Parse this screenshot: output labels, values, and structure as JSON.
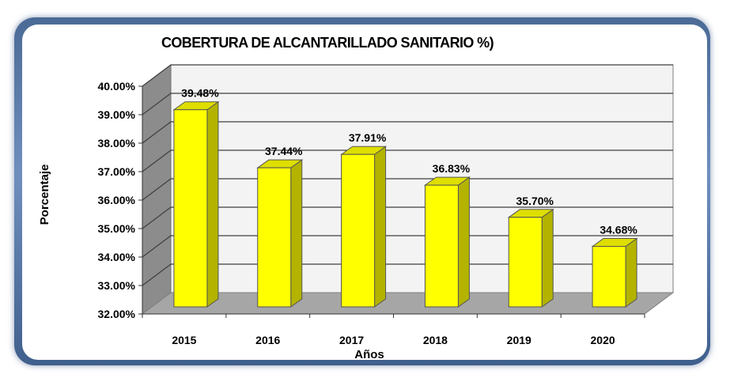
{
  "chart_data": {
    "type": "bar",
    "title": "COBERTURA DE ALCANTARILLADO SANITARIO %)",
    "xlabel": "Años",
    "ylabel": "Porcentaje",
    "categories": [
      "2015",
      "2016",
      "2017",
      "2018",
      "2019",
      "2020"
    ],
    "values": [
      39.48,
      37.44,
      37.91,
      36.83,
      35.7,
      34.68
    ],
    "data_labels": [
      "39.48%",
      "37.44%",
      "37.91%",
      "36.83%",
      "35.70%",
      "34.68%"
    ],
    "ylim": [
      32,
      40
    ],
    "yticks": [
      "32.00%",
      "33.00%",
      "34.00%",
      "35.00%",
      "36.00%",
      "37.00%",
      "38.00%",
      "39.00%",
      "40.00%"
    ],
    "grid": true,
    "legend": "none",
    "colors": {
      "bar_front": "#ffff00",
      "bar_side": "#b3b300",
      "bar_top": "#dede00",
      "wall": "#f3f3f3",
      "floor": "#a6a6a6",
      "side_wall": "#8c8c8c",
      "frame": "#5a7aa8"
    }
  }
}
